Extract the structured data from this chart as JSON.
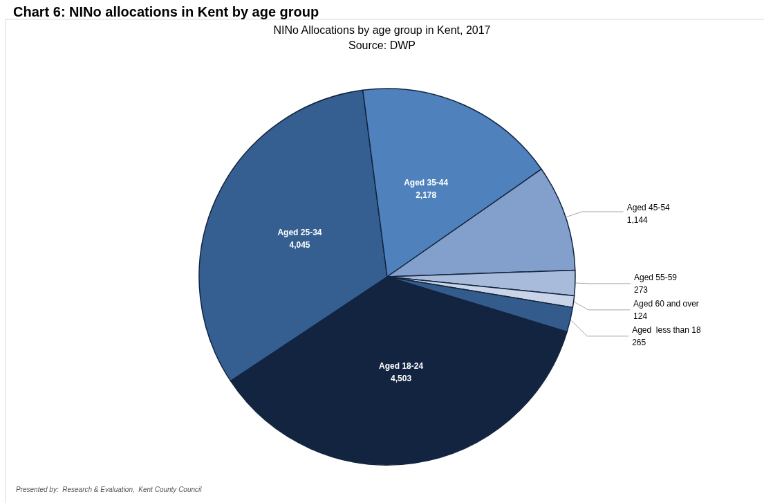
{
  "chart_data": {
    "type": "pie",
    "title": "Chart 6: NINo allocations in Kent by age group",
    "subtitle": "NINo Allocations by age group in Kent, 2017",
    "annotations": [
      "Source: DWP",
      "Presented by:  Research & Evaluation,  Kent County Council"
    ],
    "categories": [
      "Aged 18-24",
      "Aged 25-34",
      "Aged 35-44",
      "Aged 45-54",
      "Aged 55-59",
      "Aged 60 and over",
      "Aged  less than 18"
    ],
    "values": [
      4503,
      4045,
      2178,
      1144,
      273,
      124,
      265
    ],
    "colors": [
      "#12243f",
      "#355f91",
      "#4f81bd",
      "#839fcb",
      "#a9bbdb",
      "#c9d4e8",
      "#335c8c"
    ],
    "value_labels": [
      "4,503",
      "4,045",
      "2,178",
      "1,144",
      "273",
      "124",
      "265"
    ],
    "legend": false
  }
}
